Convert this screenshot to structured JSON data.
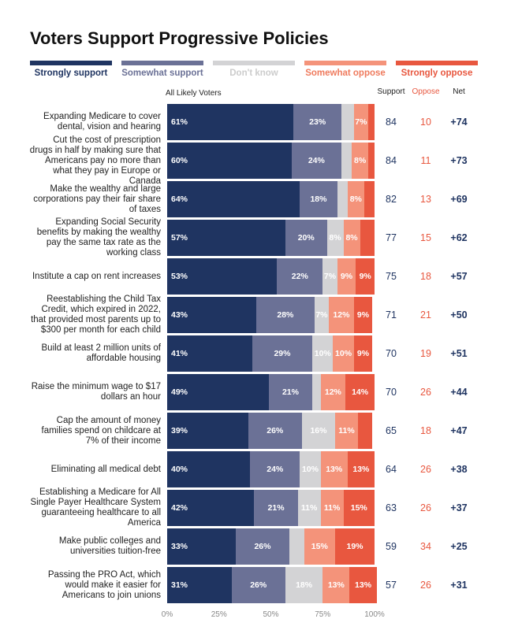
{
  "chart_data": {
    "type": "stacked-bar-horizontal",
    "title": "Voters Support Progressive Policies",
    "subtitle": "All Likely Voters",
    "categories": [
      "Expanding Medicare to cover dental, vision and hearing",
      "Cut the cost of prescription drugs in half by making sure that Americans pay no more than what they pay in Europe or Canada",
      "Make the wealthy and large corporations pay their fair share of taxes",
      "Expanding Social Security benefits by making the wealthy pay the same tax rate as the working class",
      "Institute a cap on rent increases",
      "Reestablishing the Child Tax Credit, which expired in 2022, that provided most parents up to $300 per month for each child",
      "Build at least 2 million units of affordable housing",
      "Raise the minimum wage to $17 dollars an hour",
      "Cap the amount of money families spend on childcare at 7% of their income",
      "Eliminating all medical debt",
      "Establishing a Medicare for All Single Payer Healthcare System guaranteeing healthcare to all America",
      "Make public colleges and universities tuition-free",
      "Passing the PRO Act, which would make it easier for Americans to join unions"
    ],
    "series": [
      {
        "name": "Strongly support",
        "color": "#1f3461",
        "values": [
          61,
          60,
          64,
          57,
          53,
          43,
          41,
          49,
          39,
          40,
          42,
          33,
          31
        ],
        "value_labels": [
          "61%",
          "60%",
          "64%",
          "57%",
          "53%",
          "43%",
          "41%",
          "49%",
          "39%",
          "40%",
          "42%",
          "33%",
          "31%"
        ]
      },
      {
        "name": "Somewhat support",
        "color": "#6b7196",
        "values": [
          23,
          24,
          18,
          20,
          22,
          28,
          29,
          21,
          26,
          24,
          21,
          26,
          26
        ],
        "value_labels": [
          "23%",
          "24%",
          "18%",
          "20%",
          "22%",
          "28%",
          "29%",
          "21%",
          "26%",
          "24%",
          "21%",
          "26%",
          "26%"
        ]
      },
      {
        "name": "Don't know",
        "color": "#d3d3d5",
        "values": [
          6,
          5,
          5,
          8,
          7,
          7,
          10,
          4,
          16,
          10,
          11,
          7,
          18
        ],
        "value_labels": [
          null,
          null,
          null,
          "8%",
          "7%",
          "7%",
          "10%",
          null,
          "16%",
          "10%",
          "11%",
          null,
          "18%"
        ]
      },
      {
        "name": "Somewhat oppose",
        "color": "#f4937a",
        "values": [
          7,
          8,
          8,
          8,
          9,
          12,
          10,
          12,
          11,
          13,
          11,
          15,
          13
        ],
        "value_labels": [
          "7%",
          "8%",
          "8%",
          "8%",
          "9%",
          "12%",
          "10%",
          "12%",
          "11%",
          "13%",
          "11%",
          "15%",
          "13%"
        ]
      },
      {
        "name": "Strongly oppose",
        "color": "#e8573f",
        "values": [
          3,
          3,
          5,
          7,
          9,
          9,
          9,
          14,
          7,
          13,
          15,
          19,
          13
        ],
        "value_labels": [
          null,
          null,
          null,
          null,
          "9%",
          "9%",
          "9%",
          "14%",
          null,
          "13%",
          "15%",
          "19%",
          "13%"
        ]
      }
    ],
    "xlim": [
      0,
      100
    ],
    "xticks": [
      {
        "value": 0,
        "label": "0%"
      },
      {
        "value": 25,
        "label": "25%"
      },
      {
        "value": 50,
        "label": "50%"
      },
      {
        "value": 75,
        "label": "75%"
      },
      {
        "value": 100,
        "label": "100%"
      }
    ],
    "summary": {
      "support_header": "Support",
      "support": [
        84,
        84,
        82,
        77,
        75,
        71,
        70,
        70,
        65,
        64,
        63,
        59,
        57
      ],
      "oppose_header": "Oppose",
      "oppose": [
        10,
        11,
        13,
        15,
        18,
        21,
        19,
        26,
        18,
        26,
        26,
        34,
        26
      ],
      "net_header": "Net",
      "net": [
        74,
        73,
        69,
        62,
        57,
        50,
        51,
        44,
        47,
        38,
        37,
        25,
        31
      ],
      "net_labels": [
        "+74",
        "+73",
        "+69",
        "+62",
        "+57",
        "+50",
        "+51",
        "+44",
        "+47",
        "+38",
        "+37",
        "+25",
        "+31"
      ]
    }
  }
}
